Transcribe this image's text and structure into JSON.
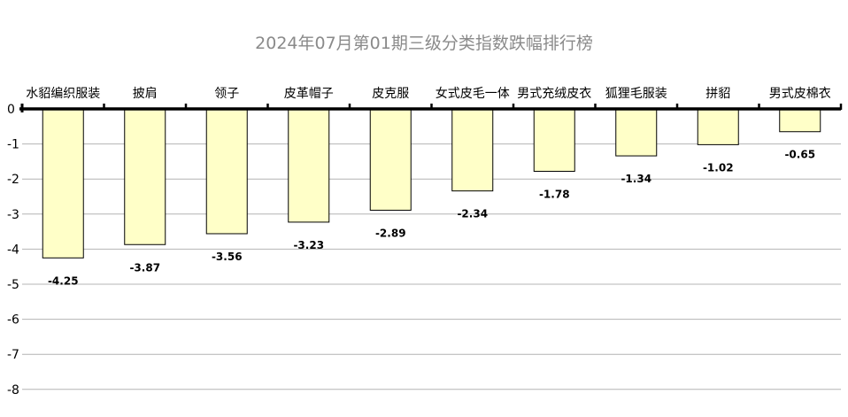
{
  "chart_data": {
    "type": "bar",
    "title": "2024年07月第01期三级分类指数跌幅排行榜",
    "categories": [
      "水貂编织服装",
      "披肩",
      "领子",
      "皮革帽子",
      "皮克服",
      "女式皮毛一体",
      "男式充绒皮衣",
      "狐狸毛服装",
      "拼貂",
      "男式皮棉衣"
    ],
    "values": [
      -4.25,
      -3.87,
      -3.56,
      -3.23,
      -2.89,
      -2.34,
      -1.78,
      -1.34,
      -1.02,
      -0.65
    ],
    "value_labels": [
      "-4.25",
      "-3.87",
      "-3.56",
      "-3.23",
      "-2.89",
      "-2.34",
      "-1.78",
      "-1.34",
      "-1.02",
      "-0.65"
    ],
    "yticks": [
      "0",
      "-1",
      "-2",
      "-3",
      "-4",
      "-5",
      "-6",
      "-7",
      "-8"
    ],
    "ylim": [
      -8,
      0
    ],
    "xlabel": "",
    "ylabel": "",
    "grid": true,
    "legend": "none",
    "colors": {
      "bar_fill": "#ffffc8",
      "bar_stroke": "#000000",
      "grid": "#b4b4b4",
      "axis": "#000000",
      "title": "#8a8a8a"
    }
  }
}
